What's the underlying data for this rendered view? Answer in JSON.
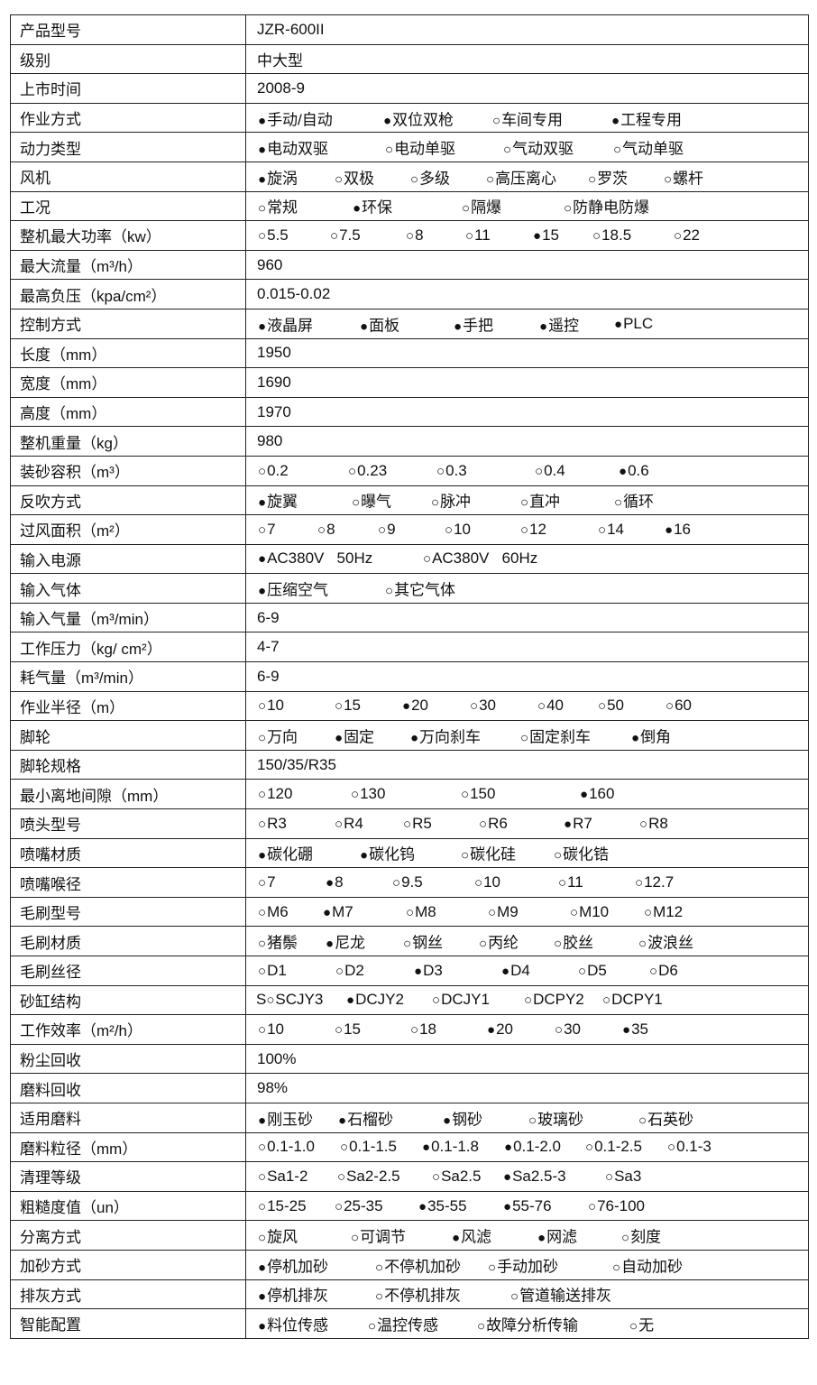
{
  "rows": [
    {
      "label": "产品型号",
      "value": "JZR-600II"
    },
    {
      "label": "级别",
      "value": "中大型"
    },
    {
      "label": "上市时间",
      "value": "2008-9"
    },
    {
      "label": "作业方式",
      "options": [
        {
          "text": "手动/自动",
          "selected": true
        },
        {
          "text": "双位双枪",
          "selected": true
        },
        {
          "text": "车间专用",
          "selected": false
        },
        {
          "text": "工程专用",
          "selected": true
        }
      ]
    },
    {
      "label": "动力类型",
      "options": [
        {
          "text": "电动双驱",
          "selected": true
        },
        {
          "text": "电动单驱",
          "selected": false
        },
        {
          "text": "气动双驱",
          "selected": false
        },
        {
          "text": "气动单驱",
          "selected": false
        }
      ]
    },
    {
      "label": "风机",
      "options": [
        {
          "text": "旋涡",
          "selected": true
        },
        {
          "text": "双极",
          "selected": false
        },
        {
          "text": "多级",
          "selected": false
        },
        {
          "text": "高压离心",
          "selected": false
        },
        {
          "text": "罗茨",
          "selected": false
        },
        {
          "text": "螺杆",
          "selected": false
        }
      ]
    },
    {
      "label": "工况",
      "options": [
        {
          "text": "常规",
          "selected": false
        },
        {
          "text": "环保",
          "selected": true
        },
        {
          "text": "隔爆",
          "selected": false
        },
        {
          "text": "防静电防爆",
          "selected": false
        }
      ]
    },
    {
      "label": "整机最大功率（kw）",
      "options": [
        {
          "text": "5.5",
          "selected": false
        },
        {
          "text": "7.5",
          "selected": false
        },
        {
          "text": "8",
          "selected": false
        },
        {
          "text": "11",
          "selected": false
        },
        {
          "text": "15",
          "selected": true
        },
        {
          "text": "18.5",
          "selected": false
        },
        {
          "text": "22",
          "selected": false
        }
      ]
    },
    {
      "label": "最大流量（m³/h）",
      "value": "960"
    },
    {
      "label": "最高负压（kpa/cm²）",
      "value": "0.015-0.02"
    },
    {
      "label": "控制方式",
      "options": [
        {
          "text": "液晶屏",
          "selected": true
        },
        {
          "text": "面板",
          "selected": true
        },
        {
          "text": "手把",
          "selected": true
        },
        {
          "text": "遥控",
          "selected": true
        },
        {
          "text": "PLC",
          "selected": true
        }
      ]
    },
    {
      "label": "长度（mm）",
      "value": "1950"
    },
    {
      "label": "宽度（mm）",
      "value": "1690"
    },
    {
      "label": "高度（mm）",
      "value": "1970"
    },
    {
      "label": "整机重量（kg）",
      "value": "980"
    },
    {
      "label": "装砂容积（m³）",
      "options": [
        {
          "text": "0.2",
          "selected": false
        },
        {
          "text": "0.23",
          "selected": false
        },
        {
          "text": "0.3",
          "selected": false
        },
        {
          "text": "0.4",
          "selected": false
        },
        {
          "text": "0.6",
          "selected": true
        }
      ]
    },
    {
      "label": "反吹方式",
      "options": [
        {
          "text": "旋翼",
          "selected": true
        },
        {
          "text": "曝气",
          "selected": false
        },
        {
          "text": "脉冲",
          "selected": false
        },
        {
          "text": "直冲",
          "selected": false
        },
        {
          "text": "循环",
          "selected": false
        }
      ]
    },
    {
      "label": "过风面积（m²）",
      "options": [
        {
          "text": "7",
          "selected": false
        },
        {
          "text": "8",
          "selected": false
        },
        {
          "text": "9",
          "selected": false
        },
        {
          "text": "10",
          "selected": false
        },
        {
          "text": "12",
          "selected": false
        },
        {
          "text": "14",
          "selected": false
        },
        {
          "text": "16",
          "selected": true
        }
      ]
    },
    {
      "label": "输入电源",
      "options": [
        {
          "text": "AC380V   50Hz",
          "selected": true
        },
        {
          "text": "AC380V   60Hz",
          "selected": false
        }
      ]
    },
    {
      "label": "输入气体",
      "options": [
        {
          "text": "压缩空气",
          "selected": true
        },
        {
          "text": "其它气体",
          "selected": false
        }
      ]
    },
    {
      "label": "输入气量（m³/min）",
      "value": "6-9"
    },
    {
      "label": "工作压力（kg/ cm²）",
      "value": "4-7"
    },
    {
      "label": "耗气量（m³/min）",
      "value": "6-9"
    },
    {
      "label": "作业半径（m）",
      "options": [
        {
          "text": "10",
          "selected": false
        },
        {
          "text": "15",
          "selected": false
        },
        {
          "text": "20",
          "selected": true
        },
        {
          "text": "30",
          "selected": false
        },
        {
          "text": "40",
          "selected": false
        },
        {
          "text": "50",
          "selected": false
        },
        {
          "text": "60",
          "selected": false
        }
      ]
    },
    {
      "label": "脚轮",
      "options": [
        {
          "text": "万向",
          "selected": false
        },
        {
          "text": "固定",
          "selected": true
        },
        {
          "text": "万向刹车",
          "selected": true
        },
        {
          "text": "固定刹车",
          "selected": false
        },
        {
          "text": "倒角",
          "selected": true
        }
      ]
    },
    {
      "label": "脚轮规格",
      "value": "150/35/R35"
    },
    {
      "label": "最小离地间隙（mm）",
      "options": [
        {
          "text": "120",
          "selected": false
        },
        {
          "text": "130",
          "selected": false
        },
        {
          "text": "150",
          "selected": false
        },
        {
          "text": "160",
          "selected": true
        }
      ]
    },
    {
      "label": "喷头型号",
      "options": [
        {
          "text": "R3",
          "selected": false
        },
        {
          "text": "R4",
          "selected": false
        },
        {
          "text": "R5",
          "selected": false
        },
        {
          "text": "R6",
          "selected": false
        },
        {
          "text": "R7",
          "selected": true
        },
        {
          "text": "R8",
          "selected": false
        }
      ]
    },
    {
      "label": "喷嘴材质",
      "options": [
        {
          "text": "碳化硼",
          "selected": true
        },
        {
          "text": "碳化钨",
          "selected": true
        },
        {
          "text": "碳化硅",
          "selected": false
        },
        {
          "text": "碳化锆",
          "selected": false
        }
      ]
    },
    {
      "label": "喷嘴喉径",
      "options": [
        {
          "text": "7",
          "selected": false
        },
        {
          "text": "8",
          "selected": true
        },
        {
          "text": "9.5",
          "selected": false
        },
        {
          "text": "10",
          "selected": false
        },
        {
          "text": "11",
          "selected": false
        },
        {
          "text": "12.7",
          "selected": false
        }
      ]
    },
    {
      "label": "毛刷型号",
      "options": [
        {
          "text": "M6",
          "selected": false
        },
        {
          "text": "M7",
          "selected": true
        },
        {
          "text": "M8",
          "selected": false
        },
        {
          "text": "M9",
          "selected": false
        },
        {
          "text": "M10",
          "selected": false
        },
        {
          "text": "M12",
          "selected": false
        }
      ]
    },
    {
      "label": "毛刷材质",
      "options": [
        {
          "text": "猪鬃",
          "selected": false
        },
        {
          "text": "尼龙",
          "selected": true
        },
        {
          "text": "钢丝",
          "selected": false
        },
        {
          "text": "丙纶",
          "selected": false
        },
        {
          "text": "胶丝",
          "selected": false
        },
        {
          "text": "波浪丝",
          "selected": false
        }
      ]
    },
    {
      "label": "毛刷丝径",
      "options": [
        {
          "text": "D1",
          "selected": false
        },
        {
          "text": "D2",
          "selected": false
        },
        {
          "text": "D3",
          "selected": true
        },
        {
          "text": "D4",
          "selected": true
        },
        {
          "text": "D5",
          "selected": false
        },
        {
          "text": "D6",
          "selected": false
        }
      ]
    },
    {
      "label": "砂缸结构",
      "options": [
        {
          "prefix": "S",
          "text": "SCJY3",
          "selected": false
        },
        {
          "text": "DCJY2",
          "selected": true
        },
        {
          "text": "DCJY1",
          "selected": false
        },
        {
          "text": "DCPY2",
          "selected": false
        },
        {
          "text": "DCPY1",
          "selected": false
        }
      ]
    },
    {
      "label": "工作效率（m²/h）",
      "options": [
        {
          "text": "10",
          "selected": false
        },
        {
          "text": "15",
          "selected": false
        },
        {
          "text": "18",
          "selected": false
        },
        {
          "text": "20",
          "selected": true
        },
        {
          "text": "30",
          "selected": false
        },
        {
          "text": "35",
          "selected": true
        }
      ]
    },
    {
      "label": "粉尘回收",
      "value": "100%"
    },
    {
      "label": "磨料回收",
      "value": "98%"
    },
    {
      "label": "适用磨料",
      "options": [
        {
          "text": "刚玉砂",
          "selected": true
        },
        {
          "text": "石榴砂",
          "selected": true
        },
        {
          "text": "钢砂",
          "selected": true
        },
        {
          "text": "玻璃砂",
          "selected": false
        },
        {
          "text": "石英砂",
          "selected": false
        }
      ]
    },
    {
      "label": "磨料粒径（mm）",
      "options": [
        {
          "text": "0.1-1.0",
          "selected": false
        },
        {
          "text": "0.1-1.5",
          "selected": false
        },
        {
          "text": "0.1-1.8",
          "selected": true
        },
        {
          "text": "0.1-2.0",
          "selected": true
        },
        {
          "text": "0.1-2.5",
          "selected": false
        },
        {
          "text": "0.1-3",
          "selected": false
        }
      ]
    },
    {
      "label": "清理等级",
      "options": [
        {
          "text": "Sa1-2",
          "selected": false
        },
        {
          "text": "Sa2-2.5",
          "selected": false
        },
        {
          "text": "Sa2.5",
          "selected": false
        },
        {
          "text": "Sa2.5-3",
          "selected": true
        },
        {
          "text": "Sa3",
          "selected": false
        }
      ]
    },
    {
      "label": "粗糙度值（un）",
      "options": [
        {
          "text": "15-25",
          "selected": false
        },
        {
          "text": "25-35",
          "selected": false
        },
        {
          "text": "35-55",
          "selected": true
        },
        {
          "text": "55-76",
          "selected": true
        },
        {
          "text": "76-100",
          "selected": false
        }
      ]
    },
    {
      "label": "分离方式",
      "options": [
        {
          "text": "旋风",
          "selected": false
        },
        {
          "text": "可调节",
          "selected": false
        },
        {
          "text": "风滤",
          "selected": true
        },
        {
          "text": "网滤",
          "selected": true
        },
        {
          "text": "刻度",
          "selected": false
        }
      ]
    },
    {
      "label": "加砂方式",
      "options": [
        {
          "text": "停机加砂",
          "selected": true
        },
        {
          "text": "不停机加砂",
          "selected": false
        },
        {
          "text": "手动加砂",
          "selected": false
        },
        {
          "text": "自动加砂",
          "selected": false
        }
      ]
    },
    {
      "label": "排灰方式",
      "options": [
        {
          "text": "停机排灰",
          "selected": true
        },
        {
          "text": "不停机排灰",
          "selected": false
        },
        {
          "text": "管道输送排灰",
          "selected": false
        }
      ]
    },
    {
      "label": "智能配置",
      "options": [
        {
          "text": "料位传感",
          "selected": true
        },
        {
          "text": "温控传感",
          "selected": false
        },
        {
          "text": "故障分析传输",
          "selected": false
        },
        {
          "text": "无",
          "selected": false
        }
      ]
    }
  ]
}
